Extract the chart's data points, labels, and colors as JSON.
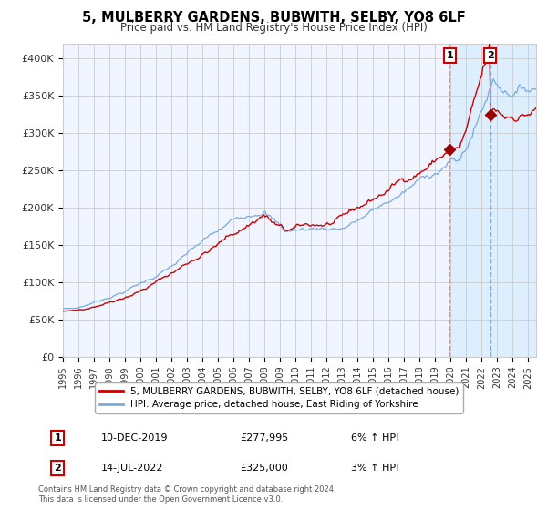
{
  "title": "5, MULBERRY GARDENS, BUBWITH, SELBY, YO8 6LF",
  "subtitle": "Price paid vs. HM Land Registry's House Price Index (HPI)",
  "legend_line1": "5, MULBERRY GARDENS, BUBWITH, SELBY, YO8 6LF (detached house)",
  "legend_line2": "HPI: Average price, detached house, East Riding of Yorkshire",
  "annotation1_date": "10-DEC-2019",
  "annotation1_price": "£277,995",
  "annotation1_pct": "6% ↑ HPI",
  "annotation2_date": "14-JUL-2022",
  "annotation2_price": "£325,000",
  "annotation2_pct": "3% ↑ HPI",
  "copyright": "Contains HM Land Registry data © Crown copyright and database right 2024.\nThis data is licensed under the Open Government Licence v3.0.",
  "hpi_color": "#7aaadd",
  "price_color": "#cc0000",
  "marker_color": "#990000",
  "vline1_color": "#ee8888",
  "vline2_color": "#88aacc",
  "shade_color": "#ddeeff",
  "ylabel_color": "#333333",
  "grid_color": "#cccccc",
  "bg_color": "#ffffff",
  "plot_bg_color": "#f0f5ff",
  "annotation_box_color": "#cc0000",
  "sale1_x": 2019.94,
  "sale1_y": 277995,
  "sale2_x": 2022.54,
  "sale2_y": 325000,
  "xmin": 1995.0,
  "xmax": 2025.5,
  "ymin": 0,
  "ymax": 420000,
  "yticks": [
    0,
    50000,
    100000,
    150000,
    200000,
    250000,
    300000,
    350000,
    400000
  ],
  "ytick_labels": [
    "£0",
    "£50K",
    "£100K",
    "£150K",
    "£200K",
    "£250K",
    "£300K",
    "£350K",
    "£400K"
  ],
  "shade_start": 2019.94,
  "shade_end": 2025.5
}
